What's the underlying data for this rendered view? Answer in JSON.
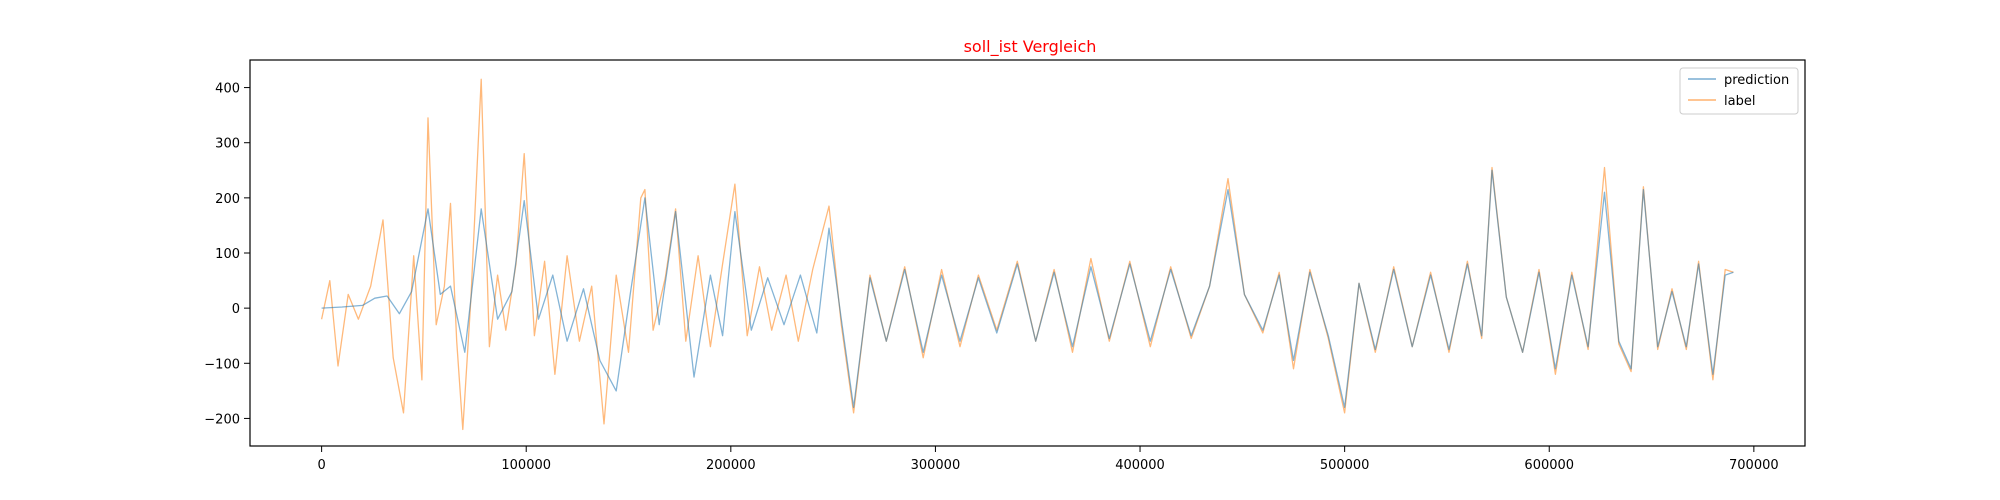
{
  "chart_data": {
    "type": "line",
    "title": "soll_ist Vergleich",
    "xlabel": "",
    "ylabel": "",
    "xlim": [
      -35000,
      725000
    ],
    "ylim": [
      -250,
      450
    ],
    "xticks": [
      0,
      100000,
      200000,
      300000,
      400000,
      500000,
      600000,
      700000
    ],
    "xtick_labels": [
      "0",
      "100000",
      "200000",
      "300000",
      "400000",
      "500000",
      "600000",
      "700000"
    ],
    "yticks": [
      -200,
      -100,
      0,
      100,
      200,
      300,
      400
    ],
    "ytick_labels": [
      "−200",
      "−100",
      "0",
      "100",
      "200",
      "300",
      "400"
    ],
    "grid": false,
    "legend": "top-right",
    "colors": {
      "title": "#ff0000",
      "prediction": "#1f77b4",
      "label": "#ff7f0e",
      "axis": "#000000"
    },
    "series": [
      {
        "name": "prediction",
        "x": [
          0,
          10000,
          20000,
          26000,
          32000,
          38000,
          44000,
          52000,
          58000,
          63000,
          70000,
          78000,
          86000,
          93000,
          99000,
          106000,
          113000,
          120000,
          128000,
          136000,
          144000,
          151000,
          158000,
          165000,
          173000,
          182000,
          190000,
          196000,
          202000,
          210000,
          218000,
          226000,
          234000,
          242000,
          248000,
          254000,
          260000,
          268000,
          276000,
          285000,
          294000,
          303000,
          312000,
          321000,
          330000,
          340000,
          349000,
          358000,
          367000,
          376000,
          385000,
          395000,
          405000,
          415000,
          425000,
          434000,
          443000,
          451000,
          460000,
          468000,
          475000,
          483000,
          492000,
          500000,
          507000,
          515000,
          524000,
          533000,
          542000,
          551000,
          560000,
          567000,
          572000,
          579000,
          587000,
          595000,
          603000,
          611000,
          619000,
          627000,
          634000,
          640000,
          646000,
          653000,
          660000,
          667000,
          673000,
          680000,
          686000,
          690000
        ],
        "y": [
          0,
          2,
          5,
          18,
          22,
          -10,
          30,
          180,
          25,
          40,
          -80,
          180,
          -20,
          30,
          195,
          -20,
          60,
          -60,
          35,
          -95,
          -150,
          30,
          200,
          -30,
          175,
          -125,
          60,
          -50,
          175,
          -40,
          55,
          -30,
          60,
          -45,
          145,
          -20,
          -180,
          55,
          -60,
          70,
          -80,
          60,
          -60,
          55,
          -45,
          80,
          -60,
          65,
          -70,
          75,
          -55,
          80,
          -60,
          70,
          -50,
          40,
          215,
          25,
          -40,
          60,
          -95,
          65,
          -50,
          -180,
          45,
          -75,
          70,
          -70,
          60,
          -75,
          80,
          -50,
          250,
          20,
          -80,
          65,
          -110,
          60,
          -70,
          210,
          -60,
          -110,
          215,
          -70,
          30,
          -70,
          80,
          -120,
          60,
          65
        ]
      },
      {
        "name": "label",
        "x": [
          0,
          4000,
          8000,
          13000,
          18000,
          24000,
          30000,
          35000,
          40000,
          45000,
          49000,
          52000,
          56000,
          60000,
          63000,
          66000,
          69000,
          73000,
          78000,
          82000,
          86000,
          90000,
          95000,
          99000,
          104000,
          109000,
          114000,
          120000,
          126000,
          132000,
          138000,
          144000,
          150000,
          156000,
          158000,
          162000,
          168000,
          173000,
          178000,
          184000,
          190000,
          196000,
          202000,
          208000,
          214000,
          220000,
          227000,
          233000,
          240000,
          248000,
          254000,
          260000,
          268000,
          276000,
          285000,
          294000,
          303000,
          312000,
          321000,
          330000,
          340000,
          349000,
          358000,
          367000,
          376000,
          385000,
          395000,
          405000,
          415000,
          425000,
          434000,
          443000,
          451000,
          460000,
          468000,
          475000,
          483000,
          492000,
          500000,
          507000,
          515000,
          524000,
          533000,
          542000,
          551000,
          560000,
          567000,
          572000,
          579000,
          587000,
          595000,
          603000,
          611000,
          619000,
          627000,
          634000,
          640000,
          646000,
          653000,
          660000,
          667000,
          673000,
          680000,
          686000,
          690000
        ],
        "y": [
          -20,
          50,
          -105,
          25,
          -20,
          40,
          160,
          -90,
          -190,
          95,
          -130,
          345,
          -30,
          40,
          190,
          -60,
          -220,
          20,
          415,
          -70,
          60,
          -40,
          80,
          280,
          -50,
          85,
          -120,
          95,
          -60,
          40,
          -210,
          60,
          -80,
          200,
          215,
          -40,
          55,
          180,
          -60,
          95,
          -70,
          80,
          225,
          -50,
          75,
          -40,
          60,
          -60,
          70,
          185,
          -30,
          -190,
          60,
          -60,
          75,
          -90,
          70,
          -70,
          60,
          -40,
          85,
          -60,
          70,
          -80,
          90,
          -60,
          85,
          -70,
          75,
          -55,
          40,
          235,
          25,
          -45,
          65,
          -110,
          70,
          -55,
          -190,
          45,
          -80,
          75,
          -70,
          65,
          -80,
          85,
          -55,
          255,
          20,
          -80,
          70,
          -120,
          65,
          -75,
          255,
          -65,
          -115,
          220,
          -75,
          35,
          -75,
          85,
          -130,
          70,
          65
        ]
      }
    ]
  }
}
